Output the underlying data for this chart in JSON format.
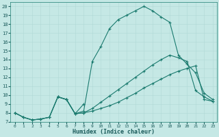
{
  "xlabel": "Humidex (Indice chaleur)",
  "xlim": [
    -0.5,
    23.5
  ],
  "ylim": [
    7,
    20.5
  ],
  "xticks": [
    0,
    1,
    2,
    3,
    4,
    5,
    6,
    7,
    8,
    9,
    10,
    11,
    12,
    13,
    14,
    15,
    16,
    17,
    18,
    19,
    20,
    21,
    22,
    23
  ],
  "yticks": [
    7,
    8,
    9,
    10,
    11,
    12,
    13,
    14,
    15,
    16,
    17,
    18,
    19,
    20
  ],
  "bg_color": "#c5e8e5",
  "grid_color": "#b0d8d5",
  "line_color": "#1a7a6e",
  "line1_x": [
    0,
    1,
    2,
    3,
    4,
    5,
    6,
    7,
    8,
    9,
    10,
    11,
    12,
    13,
    14,
    15,
    16,
    17,
    18,
    19,
    20,
    21,
    22,
    23
  ],
  "line1_y": [
    8.0,
    7.5,
    7.2,
    7.3,
    7.5,
    9.8,
    9.5,
    7.9,
    8.0,
    8.2,
    8.5,
    8.8,
    9.2,
    9.7,
    10.2,
    10.8,
    11.3,
    11.8,
    12.3,
    12.7,
    13.0,
    13.3,
    9.5,
    9.3
  ],
  "line2_x": [
    0,
    1,
    2,
    3,
    4,
    5,
    6,
    7,
    8,
    9,
    10,
    11,
    12,
    13,
    14,
    15,
    16,
    17,
    18,
    19,
    20,
    21,
    22,
    23
  ],
  "line2_y": [
    8.0,
    7.5,
    7.2,
    7.3,
    7.5,
    9.8,
    9.5,
    7.9,
    8.0,
    8.5,
    9.2,
    9.9,
    10.6,
    11.3,
    12.0,
    12.7,
    13.4,
    14.0,
    14.5,
    14.2,
    13.8,
    10.5,
    9.8,
    9.3
  ],
  "line3_x": [
    0,
    1,
    2,
    3,
    4,
    5,
    6,
    7,
    8,
    9,
    10,
    11,
    12,
    13,
    14,
    15,
    16,
    17,
    18,
    19,
    20,
    21,
    22,
    23
  ],
  "line3_y": [
    8.0,
    7.5,
    7.2,
    7.3,
    7.5,
    9.8,
    9.5,
    7.9,
    8.2,
    13.8,
    15.5,
    17.5,
    18.5,
    19.0,
    19.5,
    20.0,
    19.5,
    18.8,
    18.2,
    14.5,
    13.5,
    12.5,
    10.2,
    9.5
  ],
  "line4_x": [
    5,
    6,
    7,
    8
  ],
  "line4_y": [
    9.8,
    9.5,
    7.9,
    9.0
  ]
}
